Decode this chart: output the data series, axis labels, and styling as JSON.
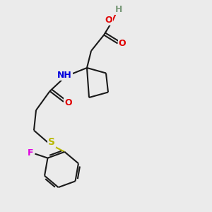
{
  "bg_color": "#ebebeb",
  "bond_color": "#1a1a1a",
  "bond_width": 1.5,
  "atom_colors": {
    "C": "#1a1a1a",
    "H": "#7a9a7a",
    "O": "#e00000",
    "N": "#0000dd",
    "S": "#b8b800",
    "F": "#e000e0"
  },
  "font_size": 8.5
}
